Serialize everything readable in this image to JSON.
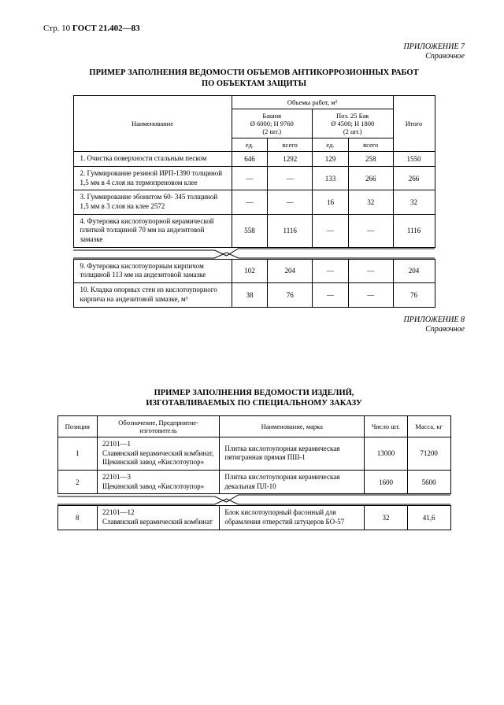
{
  "header": {
    "pageLabel": "Стр. 10",
    "standard": "ГОСТ 21.402—83"
  },
  "appendix7": {
    "line1": "ПРИЛОЖЕНИЕ 7",
    "line2": "Справочное"
  },
  "title1_line1": "ПРИМЕР ЗАПОЛНЕНИЯ ВЕДОМОСТИ ОБЪЕМОВ АНТИКОРРОЗИОННЫХ РАБОТ",
  "title1_line2": "ПО ОБЪЕКТАМ ЗАЩИТЫ",
  "t1": {
    "colgroup_label": "Объемы  работ, м²",
    "col_name": "Наименование",
    "group1_line1": "Башня",
    "group1_line2": "Ø 6000; H 9760",
    "group1_line3": "(2 шт.)",
    "group2_line1": "Поз. 25 Бак",
    "group2_line2": "Ø 4500; H 1800",
    "group2_line3": "(2 шт.)",
    "col_total": "Итого",
    "sub_ed": "ед.",
    "sub_all": "всего",
    "rows": [
      {
        "name": "1. Очистка поверхности стальным песком",
        "v": [
          "646",
          "1292",
          "129",
          "258",
          "1550"
        ]
      },
      {
        "name": "2. Гуммирование резиной ИРП-1390 толщиной 1,5 мм в 4 слоя на термопреновом клее",
        "v": [
          "—",
          "—",
          "133",
          "266",
          "266"
        ]
      },
      {
        "name": "3. Гуммирование эбонитом 60-  345 толщиной 1,5 мм в 3 слоя на клее 2572",
        "v": [
          "—",
          "—",
          "16",
          "32",
          "32"
        ]
      },
      {
        "name": "4. Футеровка кислотоупорной керамической плиткой толщиной 70 мм на андезитовой замазке",
        "v": [
          "558",
          "1116",
          "—",
          "—",
          "1116"
        ]
      }
    ],
    "rows_after": [
      {
        "name": "9. Футеровка кислотоупорным кирпичом толщиной 113 мм на андезитовой замазке",
        "v": [
          "102",
          "204",
          "—",
          "—",
          "204"
        ]
      },
      {
        "name": "10. Кладка опорных стен из кислотоупорного кирпича на андезитовой замазке, м³",
        "v": [
          "38",
          "76",
          "—",
          "—",
          "76"
        ]
      }
    ]
  },
  "appendix8": {
    "line1": "ПРИЛОЖЕНИЕ 8",
    "line2": "Справочное"
  },
  "title2_line1": "ПРИМЕР ЗАПОЛНЕНИЯ ВЕДОМОСТИ ИЗДЕЛИЙ,",
  "title2_line2": "ИЗГОТАВЛИВАЕМЫХ ПО СПЕЦИАЛЬНОМУ ЗАКАЗУ",
  "t2": {
    "h_pos": "Позиция",
    "h_desig": "Обозначение,\nПредприятие-изготовитель",
    "h_name": "Наименование, марка",
    "h_qty": "Число шт.",
    "h_mass": "Масса, кг",
    "rows": [
      {
        "pos": "1",
        "desig": "22101—1\nСлавянский керамический комбинат, Щекинский завод «Кислотоупор»",
        "name": "Плитка кислотоупорная керамическая пятигранная прямая ПШ-1",
        "qty": "13000",
        "mass": "71200"
      },
      {
        "pos": "2",
        "desig": "22101—3\nЩекинский завод «Кислотоупор»",
        "name": "Плитка кислотоупорная керамическая декальная ПЛ-10",
        "qty": "1600",
        "mass": "5600"
      }
    ],
    "rows_after": [
      {
        "pos": "8",
        "desig": "22101—12\nСлавянский керамический комбинат",
        "name": "Блок кислотоупорный фасонный для обрамления отверстий штуцеров БО-57",
        "qty": "32",
        "mass": "41,6"
      }
    ]
  }
}
